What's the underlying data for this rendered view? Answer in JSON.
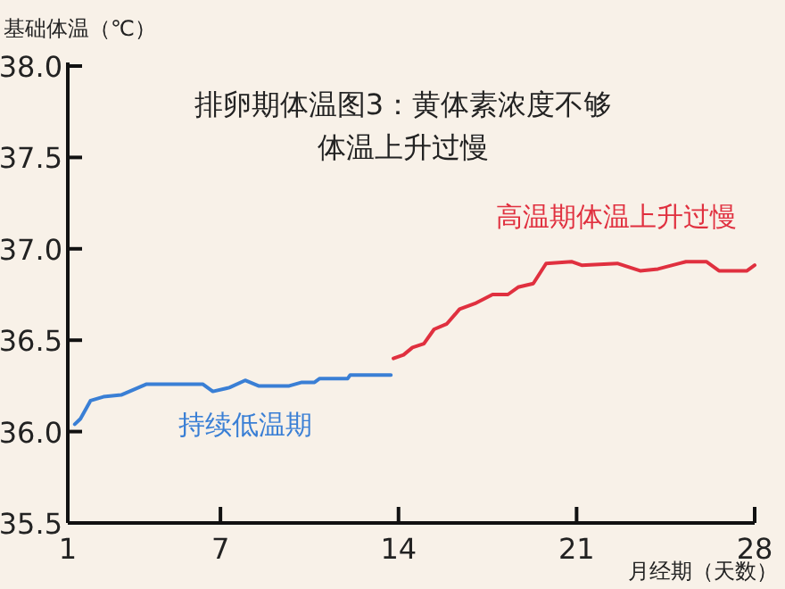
{
  "chart_data": {
    "type": "line",
    "title": "排卵期体温图3：黄体素浓度不够",
    "subtitle": "体温上升过慢",
    "xlabel": "月经期（天数）",
    "ylabel": "基础体温（℃）",
    "xlim": [
      1,
      28
    ],
    "xticks": [
      1,
      7,
      14,
      21,
      28
    ],
    "ylim": [
      35.5,
      38.0
    ],
    "yticks": [
      {
        "value": 35.5,
        "label": "35.5"
      },
      {
        "value": 36.0,
        "label": "36.0"
      },
      36.5,
      {
        "value": 37.0,
        "label": "37.0"
      },
      37.5,
      {
        "value": 38.0,
        "label": "38.0"
      }
    ],
    "grid": false,
    "marker": "none",
    "line_style": "solid",
    "series": [
      {
        "name": "持续低温期",
        "color": "#3a7fd5",
        "x": [
          1.27,
          1.5,
          1.9,
          2.4,
          3.1,
          4.1,
          6.3,
          6.7,
          7.35,
          7.97,
          8.5,
          9.7,
          10.2,
          10.7,
          10.9,
          12.0,
          12.1,
          13.7
        ],
        "values": [
          36.04,
          36.07,
          36.17,
          36.19,
          36.2,
          36.26,
          36.26,
          36.22,
          36.24,
          36.28,
          36.25,
          36.25,
          36.27,
          36.27,
          36.29,
          36.29,
          36.31,
          36.31
        ]
      },
      {
        "name": "高温期体温上升过慢",
        "color": "#e0303f",
        "x": [
          13.8,
          14.2,
          14.55,
          15.0,
          15.4,
          15.9,
          16.4,
          17.0,
          17.7,
          18.3,
          18.7,
          19.3,
          19.8,
          20.8,
          21.2,
          22.6,
          23.5,
          24.2,
          25.3,
          26.1,
          26.6,
          27.7,
          28.0
        ],
        "values": [
          36.4,
          36.42,
          36.46,
          36.48,
          36.56,
          36.59,
          36.67,
          36.7,
          36.75,
          36.75,
          36.79,
          36.81,
          36.92,
          36.93,
          36.91,
          36.92,
          36.88,
          36.89,
          36.93,
          36.93,
          36.88,
          36.88,
          36.91
        ]
      }
    ]
  }
}
